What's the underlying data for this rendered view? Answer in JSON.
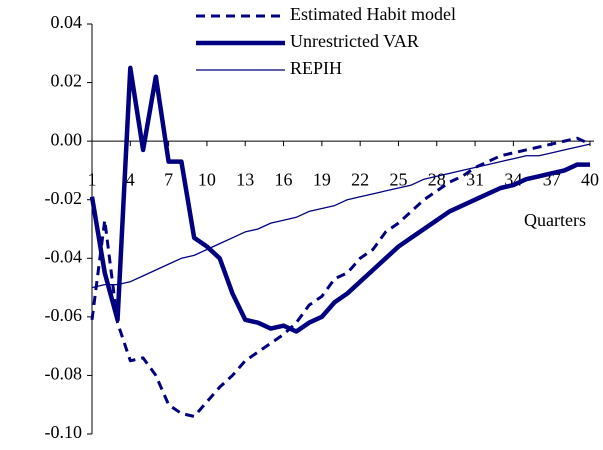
{
  "chart_data": {
    "type": "line",
    "x": [
      1,
      2,
      3,
      4,
      5,
      6,
      7,
      8,
      9,
      10,
      11,
      12,
      13,
      14,
      15,
      16,
      17,
      18,
      19,
      20,
      21,
      22,
      23,
      24,
      25,
      26,
      27,
      28,
      29,
      30,
      31,
      32,
      33,
      34,
      35,
      36,
      37,
      38,
      39,
      40
    ],
    "xlim": [
      1,
      40
    ],
    "xticks": [
      1,
      4,
      7,
      10,
      13,
      16,
      19,
      22,
      25,
      28,
      31,
      34,
      37,
      40
    ],
    "xlabel": "Quarters",
    "ylim": [
      -0.1,
      0.04
    ],
    "yticks": [
      {
        "value": 0.04,
        "label": "0.04"
      },
      {
        "value": 0.02,
        "label": "0.02"
      },
      {
        "value": 0,
        "label": "0.00"
      },
      {
        "value": -0.02,
        "label": "-0.02"
      },
      {
        "value": -0.04,
        "label": "-0.04"
      },
      {
        "value": -0.06,
        "label": "-0.06"
      },
      {
        "value": -0.08,
        "label": "-0.08"
      },
      {
        "value": -0.1,
        "label": "-0.10"
      }
    ],
    "legend": "top-right",
    "series": [
      {
        "name": "Estimated Habit model",
        "color": "#000080",
        "style": "dashed",
        "values": [
          -0.061,
          -0.027,
          -0.062,
          -0.075,
          -0.074,
          -0.08,
          -0.09,
          -0.093,
          -0.094,
          -0.089,
          -0.084,
          -0.08,
          -0.075,
          -0.072,
          -0.069,
          -0.066,
          -0.062,
          -0.056,
          -0.053,
          -0.047,
          -0.045,
          -0.04,
          -0.037,
          -0.031,
          -0.028,
          -0.024,
          -0.02,
          -0.017,
          -0.014,
          -0.012,
          -0.009,
          -0.007,
          -0.005,
          -0.004,
          -0.003,
          -0.002,
          -0.001,
          0,
          0.001,
          -0.001
        ]
      },
      {
        "name": "Unrestricted VAR",
        "color": "#000080",
        "style": "thick",
        "values": [
          -0.019,
          -0.045,
          -0.061,
          0.025,
          -0.003,
          0.022,
          -0.007,
          -0.007,
          -0.033,
          -0.036,
          -0.04,
          -0.052,
          -0.061,
          -0.062,
          -0.064,
          -0.063,
          -0.065,
          -0.062,
          -0.06,
          -0.055,
          -0.052,
          -0.048,
          -0.044,
          -0.04,
          -0.036,
          -0.033,
          -0.03,
          -0.027,
          -0.024,
          -0.022,
          -0.02,
          -0.018,
          -0.016,
          -0.015,
          -0.013,
          -0.012,
          -0.011,
          -0.01,
          -0.008,
          -0.008
        ]
      },
      {
        "name": "REPIH",
        "color": "#000080",
        "style": "thin",
        "values": [
          -0.05,
          -0.049,
          -0.049,
          -0.048,
          -0.046,
          -0.044,
          -0.042,
          -0.04,
          -0.039,
          -0.037,
          -0.035,
          -0.033,
          -0.031,
          -0.03,
          -0.028,
          -0.027,
          -0.026,
          -0.024,
          -0.023,
          -0.022,
          -0.02,
          -0.019,
          -0.018,
          -0.017,
          -0.016,
          -0.015,
          -0.013,
          -0.012,
          -0.011,
          -0.01,
          -0.009,
          -0.008,
          -0.007,
          -0.006,
          -0.005,
          -0.005,
          -0.004,
          -0.003,
          -0.002,
          -0.001
        ]
      }
    ]
  }
}
